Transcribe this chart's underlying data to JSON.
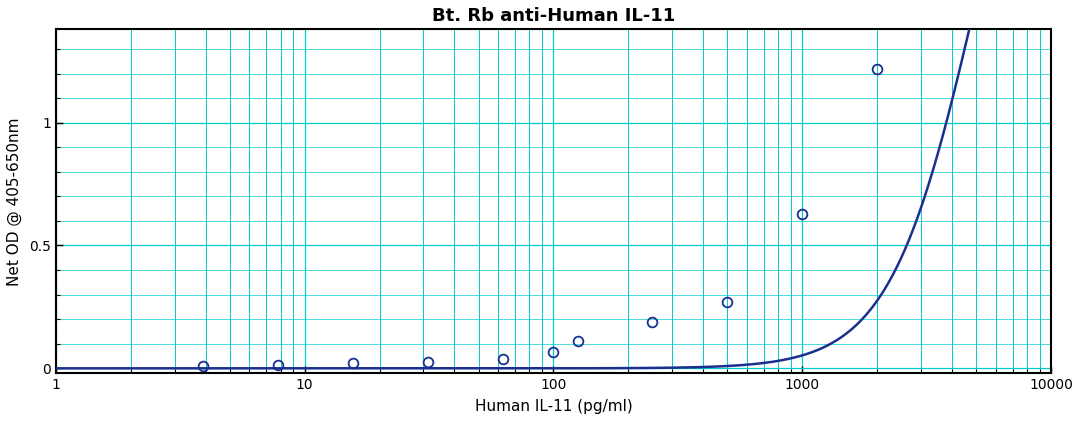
{
  "title": "Bt. Rb anti-Human IL-11",
  "xlabel": "Human IL-11 (pg/ml)",
  "ylabel": "Net OD @ 405-650nm",
  "data_x": [
    3.9,
    7.8,
    15.6,
    31.25,
    62.5,
    100,
    125,
    250,
    500,
    1000,
    2000
  ],
  "data_y": [
    0.008,
    0.013,
    0.02,
    0.025,
    0.04,
    0.065,
    0.11,
    0.19,
    0.27,
    0.63,
    1.22
  ],
  "xlim_log": [
    0,
    4
  ],
  "ylim": [
    -0.02,
    1.38
  ],
  "yticks": [
    0,
    0.5,
    1.0
  ],
  "curve_color": "#1a3090",
  "point_color": "#1a3090",
  "grid_major_color": "#00cccc",
  "grid_minor_color": "#00cccc",
  "background_color": "#ffffff",
  "title_fontsize": 13,
  "label_fontsize": 11,
  "tick_fontsize": 10,
  "figwidth": 10.8,
  "figheight": 4.21,
  "dpi": 100
}
